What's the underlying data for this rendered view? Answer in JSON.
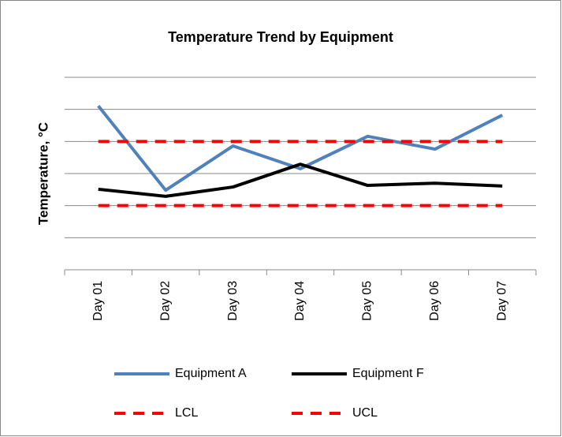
{
  "chart_data": {
    "type": "line",
    "title": "Temperature Trend by Equipment",
    "y_label": "Temperature, °C",
    "categories": [
      "Day 01",
      "Day 02",
      "Day 03",
      "Day 04",
      "Day 05",
      "Day 06",
      "Day 07"
    ],
    "series": [
      {
        "name": "Equipment A",
        "color": "#4f81bd",
        "dash": false,
        "values": [
          5.11,
          2.48,
          3.86,
          3.15,
          4.16,
          3.76,
          4.82
        ]
      },
      {
        "name": "Equipment F",
        "color": "#000000",
        "dash": false,
        "values": [
          2.51,
          2.29,
          2.58,
          3.29,
          2.63,
          2.7,
          2.61
        ]
      },
      {
        "name": "LCL",
        "color": "#ff0000",
        "dash": true,
        "values": [
          2,
          2,
          2,
          2,
          2,
          2,
          2
        ]
      },
      {
        "name": "UCL",
        "color": "#ff0000",
        "dash": true,
        "values": [
          4,
          4,
          4,
          4,
          4,
          4,
          4
        ]
      }
    ],
    "ylim": [
      0,
      6
    ],
    "yticks": [
      1,
      2,
      3,
      4,
      5,
      6
    ],
    "grid": true,
    "legend": "bottom"
  }
}
